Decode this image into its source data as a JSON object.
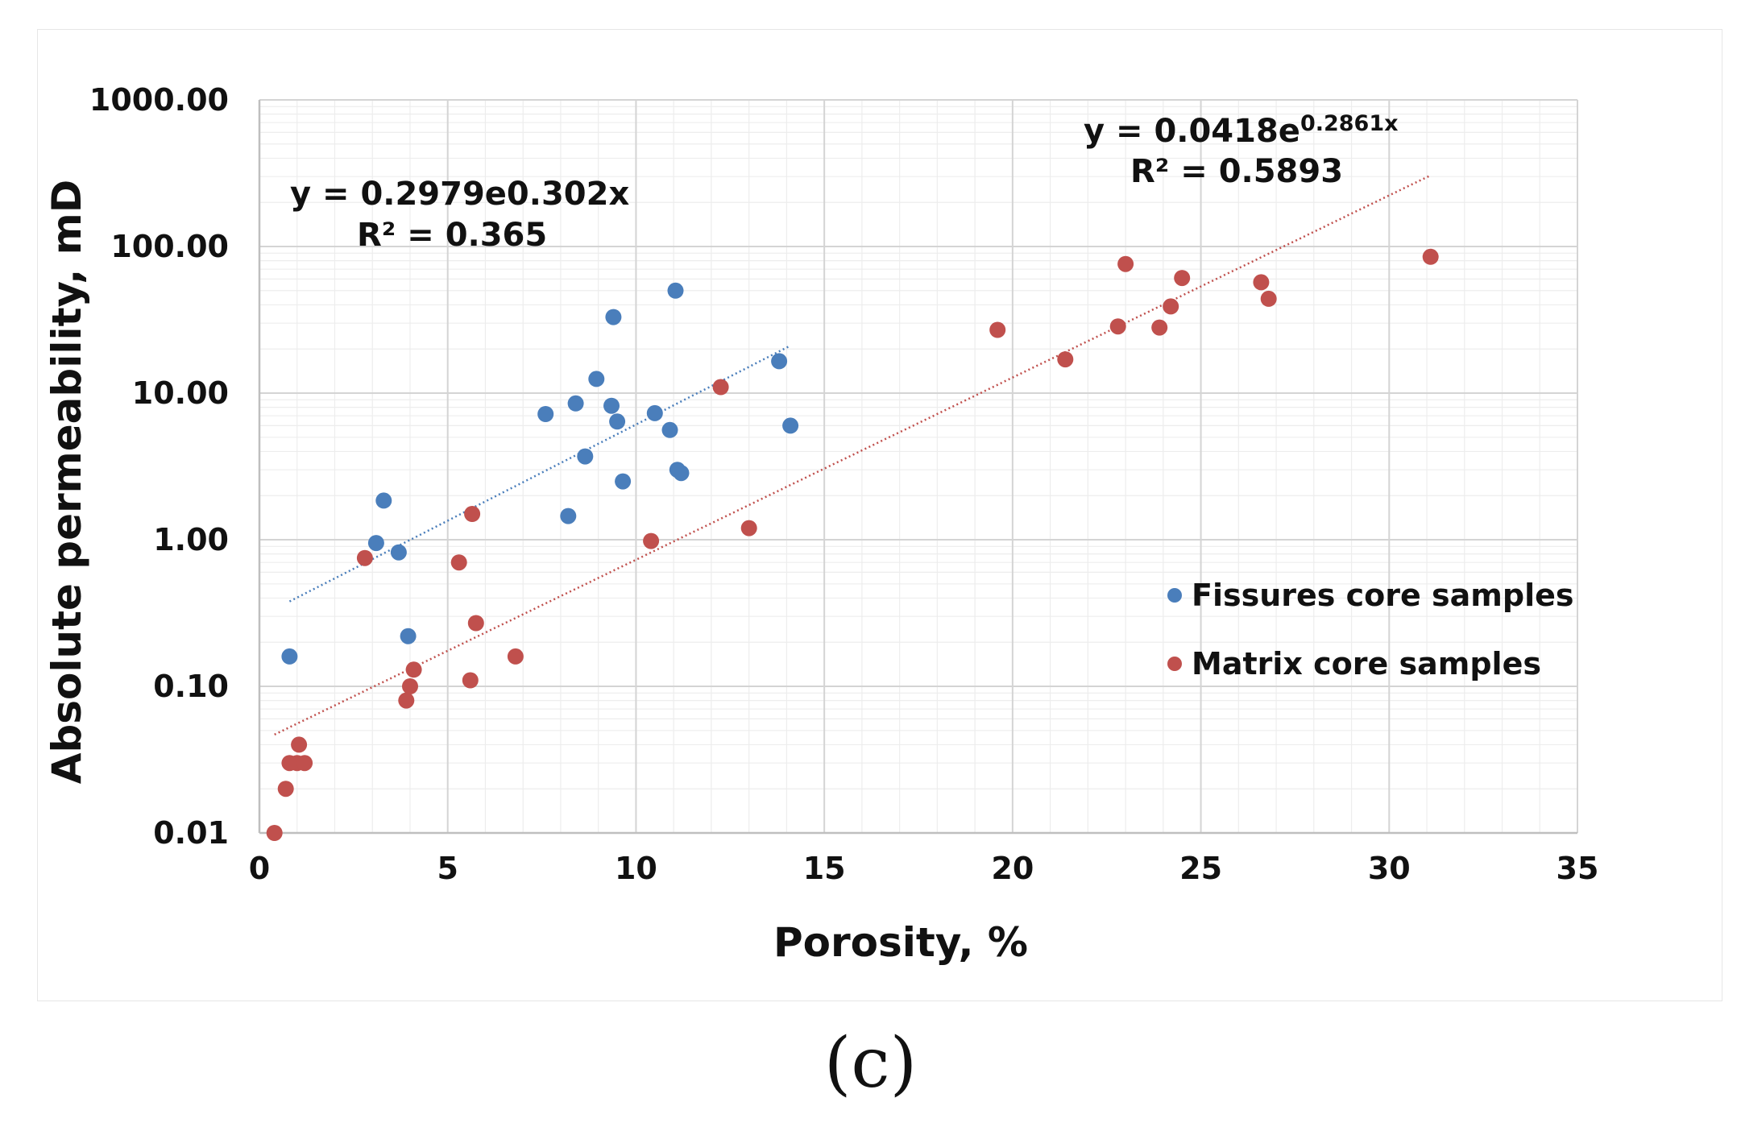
{
  "caption": "(c)",
  "chart_data": {
    "type": "scatter",
    "xlabel": "Porosity, %",
    "ylabel": "Absolute permeability, mD",
    "xlim": [
      0,
      35
    ],
    "ylim": [
      0.01,
      1000
    ],
    "yscale": "log",
    "x_ticks": [
      0,
      5,
      10,
      15,
      20,
      25,
      30,
      35
    ],
    "x_tick_labels": [
      "0",
      "5",
      "10",
      "15",
      "20",
      "25",
      "30",
      "35"
    ],
    "y_ticks": [
      0.01,
      0.1,
      1,
      10,
      100,
      1000
    ],
    "y_tick_labels": [
      "0.01",
      "0.10",
      "1.00",
      "10.00",
      "100.00",
      "1000.00"
    ],
    "grid": true,
    "legend_position": "right",
    "series": [
      {
        "name": "Fissures core samples",
        "color": "#4a7ebb",
        "points": [
          [
            0.8,
            0.16
          ],
          [
            3.1,
            0.95
          ],
          [
            3.3,
            1.85
          ],
          [
            3.7,
            0.82
          ],
          [
            3.95,
            0.22
          ],
          [
            7.6,
            7.2
          ],
          [
            8.2,
            1.45
          ],
          [
            8.4,
            8.5
          ],
          [
            8.65,
            3.7
          ],
          [
            8.95,
            12.5
          ],
          [
            9.35,
            8.2
          ],
          [
            9.4,
            33.0
          ],
          [
            9.5,
            6.4
          ],
          [
            9.65,
            2.5
          ],
          [
            10.5,
            7.3
          ],
          [
            10.9,
            5.6
          ],
          [
            11.05,
            50.0
          ],
          [
            11.1,
            3.0
          ],
          [
            11.2,
            2.85
          ],
          [
            13.8,
            16.5
          ],
          [
            14.1,
            6.0
          ]
        ],
        "trendline": {
          "equation": "y = 0.2979e0.302x",
          "r2_label": "R² = 0.365",
          "a": 0.2979,
          "b": 0.302,
          "x_range": [
            0.8,
            14.1
          ]
        }
      },
      {
        "name": "Matrix core samples",
        "color": "#c0504d",
        "points": [
          [
            0.4,
            0.01
          ],
          [
            0.7,
            0.02
          ],
          [
            0.8,
            0.03
          ],
          [
            1.0,
            0.03
          ],
          [
            1.05,
            0.04
          ],
          [
            1.2,
            0.03
          ],
          [
            2.8,
            0.75
          ],
          [
            3.9,
            0.08
          ],
          [
            4.0,
            0.1
          ],
          [
            4.1,
            0.13
          ],
          [
            5.3,
            0.7
          ],
          [
            5.6,
            0.11
          ],
          [
            5.65,
            1.5
          ],
          [
            5.75,
            0.27
          ],
          [
            6.8,
            0.16
          ],
          [
            10.4,
            0.98
          ],
          [
            12.25,
            11.0
          ],
          [
            13.0,
            1.2
          ],
          [
            19.6,
            27.0
          ],
          [
            21.4,
            17.0
          ],
          [
            22.8,
            28.5
          ],
          [
            23.0,
            76.0
          ],
          [
            23.9,
            28.0
          ],
          [
            24.2,
            39.0
          ],
          [
            24.5,
            61.0
          ],
          [
            26.6,
            57.0
          ],
          [
            26.8,
            44.0
          ],
          [
            31.1,
            85.0
          ]
        ],
        "trendline": {
          "equation_base": "y = 0.0418e",
          "equation_exponent": "0.2861x",
          "r2_label": "R² = 0.5893",
          "a": 0.0418,
          "b": 0.2861,
          "x_range": [
            0.4,
            31.1
          ]
        }
      }
    ]
  }
}
